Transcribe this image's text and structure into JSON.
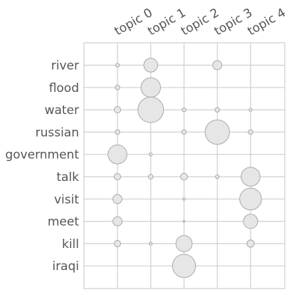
{
  "chart_data": {
    "type": "scatter",
    "title": "",
    "xlabel": "",
    "ylabel": "",
    "grid": true,
    "x_categories": [
      "topic 0",
      "topic 1",
      "topic 2",
      "topic 3",
      "topic 4"
    ],
    "y_categories": [
      "river",
      "flood",
      "water",
      "russian",
      "government",
      "talk",
      "visit",
      "meet",
      "kill",
      "iraqi"
    ],
    "points": [
      {
        "word": "river",
        "topic": "topic 0",
        "weight": 0.0012
      },
      {
        "word": "river",
        "topic": "topic 1",
        "weight": 0.016
      },
      {
        "word": "river",
        "topic": "topic 3",
        "weight": 0.007
      },
      {
        "word": "flood",
        "topic": "topic 0",
        "weight": 0.0018
      },
      {
        "word": "flood",
        "topic": "topic 1",
        "weight": 0.032
      },
      {
        "word": "water",
        "topic": "topic 0",
        "weight": 0.0035
      },
      {
        "word": "water",
        "topic": "topic 1",
        "weight": 0.055
      },
      {
        "word": "water",
        "topic": "topic 2",
        "weight": 0.0012
      },
      {
        "word": "water",
        "topic": "topic 3",
        "weight": 0.0018
      },
      {
        "word": "water",
        "topic": "topic 4",
        "weight": 0.0008
      },
      {
        "word": "russian",
        "topic": "topic 0",
        "weight": 0.0018
      },
      {
        "word": "russian",
        "topic": "topic 2",
        "weight": 0.0018
      },
      {
        "word": "russian",
        "topic": "topic 3",
        "weight": 0.05
      },
      {
        "word": "russian",
        "topic": "topic 4",
        "weight": 0.0018
      },
      {
        "word": "government",
        "topic": "topic 0",
        "weight": 0.03
      },
      {
        "word": "government",
        "topic": "topic 1",
        "weight": 0.0008
      },
      {
        "word": "talk",
        "topic": "topic 0",
        "weight": 0.0035
      },
      {
        "word": "talk",
        "topic": "topic 1",
        "weight": 0.0018
      },
      {
        "word": "talk",
        "topic": "topic 2",
        "weight": 0.004
      },
      {
        "word": "talk",
        "topic": "topic 3",
        "weight": 0.0012
      },
      {
        "word": "talk",
        "topic": "topic 4",
        "weight": 0.03
      },
      {
        "word": "visit",
        "topic": "topic 0",
        "weight": 0.007
      },
      {
        "word": "visit",
        "topic": "topic 2",
        "weight": 0.0005
      },
      {
        "word": "visit",
        "topic": "topic 4",
        "weight": 0.04
      },
      {
        "word": "meet",
        "topic": "topic 0",
        "weight": 0.007
      },
      {
        "word": "meet",
        "topic": "topic 2",
        "weight": 0.0003
      },
      {
        "word": "meet",
        "topic": "topic 4",
        "weight": 0.017
      },
      {
        "word": "kill",
        "topic": "topic 0",
        "weight": 0.0035
      },
      {
        "word": "kill",
        "topic": "topic 1",
        "weight": 0.0008
      },
      {
        "word": "kill",
        "topic": "topic 2",
        "weight": 0.022
      },
      {
        "word": "kill",
        "topic": "topic 4",
        "weight": 0.0045
      },
      {
        "word": "iraqi",
        "topic": "topic 2",
        "weight": 0.045
      }
    ],
    "colors": {
      "bubble_fill": "#e6e6e6",
      "bubble_stroke": "#a9a9a9",
      "grid": "#cfcfcf",
      "label": "#555555"
    }
  }
}
